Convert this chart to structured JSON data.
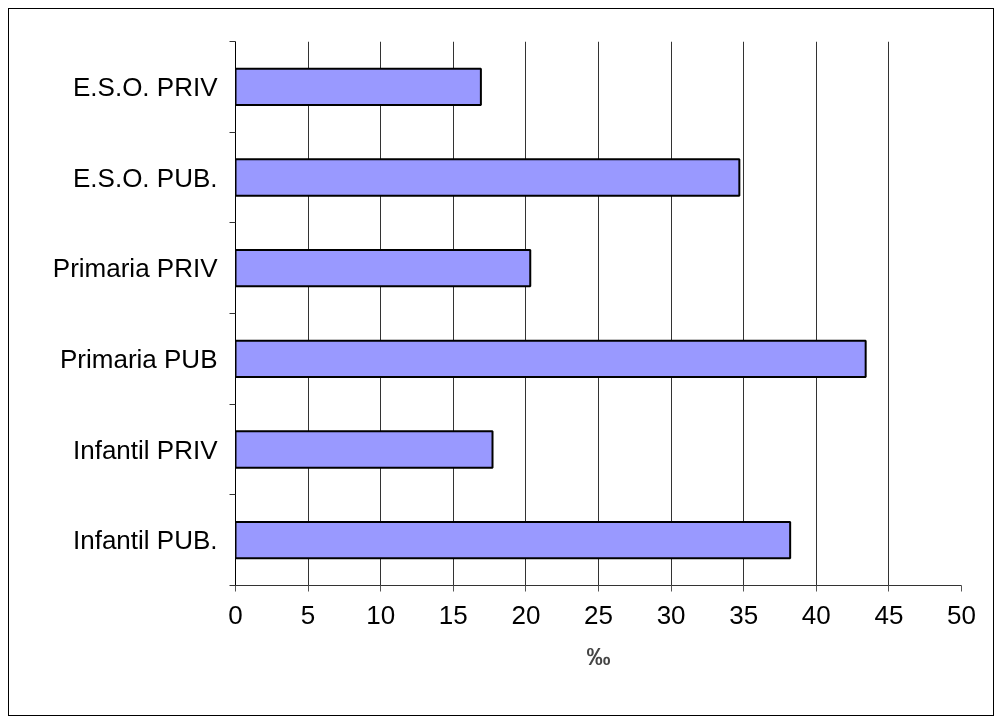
{
  "chart_data": {
    "type": "bar",
    "orientation": "horizontal",
    "categories": [
      "E.S.O. PRIV",
      "E.S.O. PUB.",
      "Primaria PRIV",
      "Primaria PUB",
      "Infantil PRIV",
      "Infantil PUB."
    ],
    "values": [
      16.9,
      34.7,
      20.3,
      43.4,
      17.7,
      38.2
    ],
    "color": "#9999ff",
    "xlabel": "‰",
    "xlim": [
      0,
      50
    ],
    "xticks": [
      0,
      5,
      10,
      15,
      20,
      25,
      30,
      35,
      40,
      45,
      50
    ],
    "grid": "x"
  }
}
